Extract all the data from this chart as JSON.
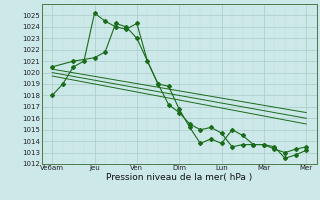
{
  "xlabel": "Pression niveau de la mer( hPa )",
  "background_color": "#cce8e8",
  "grid_color_major": "#aacccc",
  "grid_color_minor": "#c0dede",
  "line_color": "#1a6b1a",
  "ylim": [
    1012,
    1026
  ],
  "xlim": [
    0,
    13
  ],
  "yticks": [
    1012,
    1013,
    1014,
    1015,
    1016,
    1017,
    1018,
    1019,
    1020,
    1021,
    1022,
    1023,
    1024,
    1025
  ],
  "xtick_labels": [
    "Ve6am",
    "Jeu",
    "Ven",
    "Dim",
    "Lun",
    "Mar",
    "Mer"
  ],
  "xtick_positions": [
    0.5,
    2.5,
    4.5,
    6.5,
    8.5,
    10.5,
    12.5
  ],
  "series1_x": [
    0.5,
    1.0,
    1.5,
    2.0,
    2.5,
    3.0,
    3.5,
    4.0,
    4.5,
    5.0,
    5.5,
    6.0,
    6.5,
    7.0,
    7.5,
    8.0,
    8.5,
    9.0,
    9.5,
    10.0,
    10.5,
    11.0,
    11.5,
    12.0,
    12.5
  ],
  "series1_y": [
    1018.0,
    1019.0,
    1020.5,
    1021.0,
    1025.2,
    1024.5,
    1024.0,
    1023.8,
    1024.3,
    1021.0,
    1019.0,
    1018.8,
    1016.8,
    1015.2,
    1013.8,
    1014.2,
    1013.8,
    1015.0,
    1014.5,
    1013.7,
    1013.7,
    1013.3,
    1013.0,
    1013.3,
    1013.5
  ],
  "series2_x": [
    0.5,
    1.5,
    2.5,
    3.0,
    3.5,
    4.0,
    4.5,
    5.5,
    6.0,
    6.5,
    7.0,
    7.5,
    8.0,
    8.5,
    9.0,
    9.5,
    10.0,
    10.5,
    11.0,
    11.5,
    12.0,
    12.5
  ],
  "series2_y": [
    1020.5,
    1021.0,
    1021.3,
    1021.8,
    1024.3,
    1024.0,
    1023.0,
    1019.0,
    1017.2,
    1016.5,
    1015.5,
    1015.0,
    1015.2,
    1014.7,
    1013.5,
    1013.7,
    1013.7,
    1013.7,
    1013.5,
    1012.5,
    1012.8,
    1013.2
  ],
  "trend1_x": [
    0.5,
    12.5
  ],
  "trend1_y": [
    1020.3,
    1016.5
  ],
  "trend2_x": [
    0.5,
    12.5
  ],
  "trend2_y": [
    1020.0,
    1016.0
  ],
  "trend3_x": [
    0.5,
    12.5
  ],
  "trend3_y": [
    1019.7,
    1015.5
  ]
}
